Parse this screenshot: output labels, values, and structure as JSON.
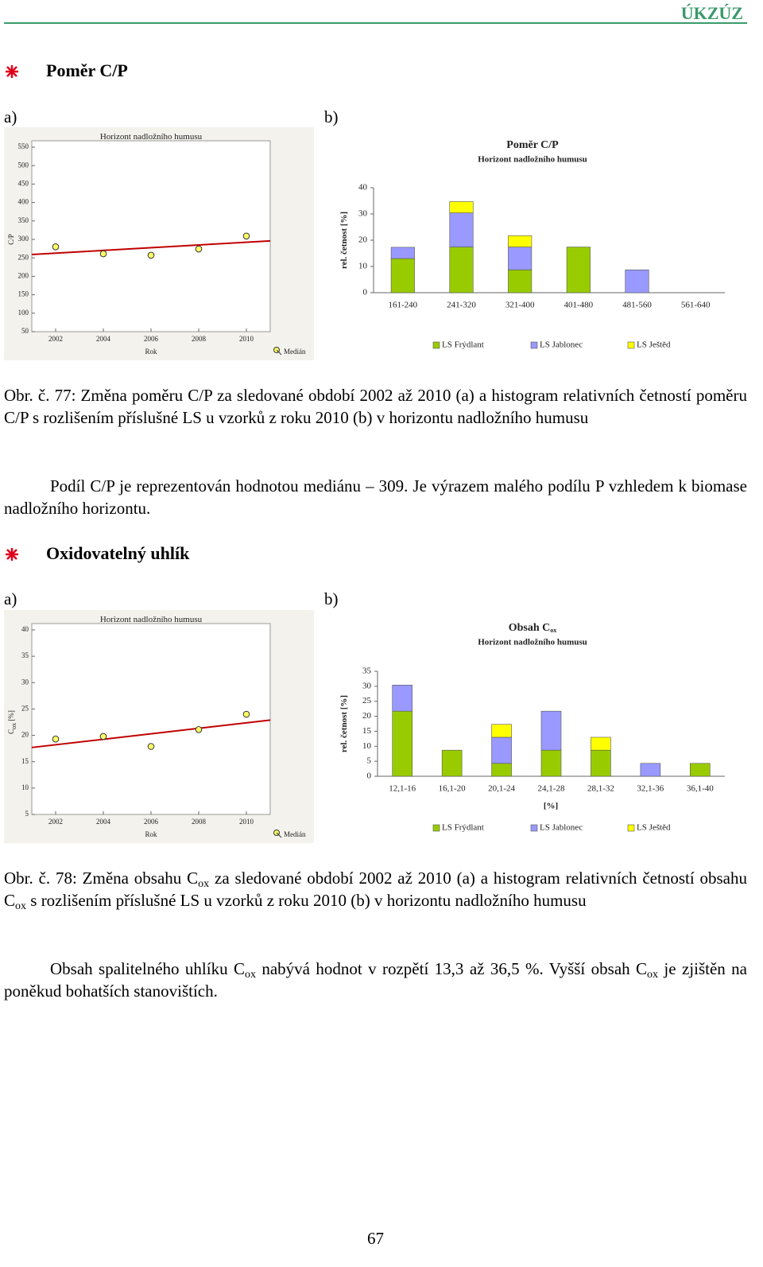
{
  "header": {
    "org": "ÚKZÚZ"
  },
  "sections": [
    {
      "heading": "Poměr C/P",
      "label_a": "a)",
      "label_b": "b)",
      "caption": [
        "Obr. č. 77: Změna poměru C/P za sledované období 2002 až 2010 (a) a histogram relativních četností poměru C/P s rozlišením příslušné LS u vzorků z roku 2010 (b) v horizontu nadložního humusu"
      ],
      "paragraph": [
        "Podíl C/P je reprezentován hodnotou mediánu – 309. Je výrazem malého podílu P vzhledem k biomase nadložního horizontu."
      ]
    },
    {
      "heading": "Oxidovatelný uhlík",
      "label_a": "a)",
      "label_b": "b)",
      "caption": [
        "Obr. č. 78: Změna obsahu C",
        "ox",
        " za sledované období 2002 až 2010 (a) a histogram relativních četností obsahu C",
        "ox",
        " s rozlišením příslušné LS u vzorků z roku 2010 (b) v horizontu nadložního humusu"
      ],
      "paragraph": [
        "Obsah spalitelného uhlíku C",
        "ox",
        " nabývá hodnot v rozpětí 13,3 až 36,5 %. Vyšší obsah C",
        "ox",
        " je zjištěn na poněkud bohatších stanovištích."
      ]
    }
  ],
  "chart_data": [
    {
      "type": "scatter",
      "title": [
        "Horizont nadložního humusu"
      ],
      "xlabel": "Rok",
      "ylabel": [
        "C/P"
      ],
      "legend": "Medián",
      "x": [
        2002,
        2004,
        2006,
        2008,
        2010
      ],
      "values": [
        280,
        261,
        257,
        274,
        309
      ],
      "color": "#ffff66",
      "trend": {
        "x": [
          2001,
          2011
        ],
        "y": [
          259,
          296
        ],
        "color": "#c00000"
      },
      "xlim": [
        2001,
        2011
      ],
      "xticks": [
        2002,
        2004,
        2006,
        2008,
        2010
      ],
      "ylim": [
        50,
        550
      ],
      "yticks": [
        50,
        100,
        150,
        200,
        250,
        300,
        350,
        400,
        450,
        500,
        550
      ]
    },
    {
      "type": "bar",
      "stacked": true,
      "title": [
        "Poměr C/P"
      ],
      "subtitle": "Horizont nadložního humusu",
      "ylabel": [
        "rel. četnost [%]"
      ],
      "categories": [
        "161-240",
        "241-320",
        "321-400",
        "401-480",
        "481-560",
        "561-640"
      ],
      "series": [
        {
          "name": "LS Frýdlant",
          "color": "#99cc00",
          "values": [
            13,
            17.4,
            8.7,
            17.4,
            0,
            0
          ]
        },
        {
          "name": "LS Jablonec",
          "color": "#9999ff",
          "values": [
            4.3,
            13,
            8.7,
            0,
            8.7,
            0
          ]
        },
        {
          "name": "LS Ještěd",
          "color": "#ffff00",
          "values": [
            0,
            4.3,
            4.3,
            0,
            0,
            0
          ]
        }
      ],
      "ylim": [
        0,
        40
      ],
      "yticks": [
        0,
        10,
        20,
        30,
        40
      ]
    },
    {
      "type": "scatter",
      "title": [
        "Horizont nadložního humusu"
      ],
      "xlabel": "Rok",
      "ylabel": [
        "C",
        "ox",
        " [%]"
      ],
      "legend": "Medián",
      "x": [
        2002,
        2004,
        2006,
        2008,
        2010
      ],
      "values": [
        19.3,
        19.8,
        17.9,
        21.1,
        24
      ],
      "color": "#ffff66",
      "trend": {
        "x": [
          2001,
          2011
        ],
        "y": [
          17.7,
          22.9
        ],
        "color": "#c00000"
      },
      "xlim": [
        2001,
        2011
      ],
      "xticks": [
        2002,
        2004,
        2006,
        2008,
        2010
      ],
      "ylim": [
        5,
        40
      ],
      "yticks": [
        5,
        10,
        15,
        20,
        25,
        30,
        35,
        40
      ]
    },
    {
      "type": "bar",
      "stacked": true,
      "title": [
        "Obsah C",
        "ox"
      ],
      "subtitle": "Horizont nadložního humusu",
      "ylabel": [
        "rel. četnost [%]"
      ],
      "xlabel": "[%]",
      "categories": [
        "12,1-16",
        "16,1-20",
        "20,1-24",
        "24,1-28",
        "28,1-32",
        "32,1-36",
        "36,1-40"
      ],
      "series": [
        {
          "name": "LS Frýdlant",
          "color": "#99cc00",
          "values": [
            21.7,
            8.7,
            4.3,
            8.7,
            8.7,
            0,
            4.3
          ]
        },
        {
          "name": "LS Jablonec",
          "color": "#9999ff",
          "values": [
            8.7,
            0,
            8.7,
            13,
            0,
            4.3,
            0
          ]
        },
        {
          "name": "LS Ještěd",
          "color": "#ffff00",
          "values": [
            0,
            0,
            4.3,
            0,
            4.3,
            0,
            0
          ]
        }
      ],
      "ylim": [
        0,
        35
      ],
      "yticks": [
        0,
        5,
        10,
        15,
        20,
        25,
        30,
        35
      ]
    }
  ],
  "footer": {
    "page": "67"
  }
}
